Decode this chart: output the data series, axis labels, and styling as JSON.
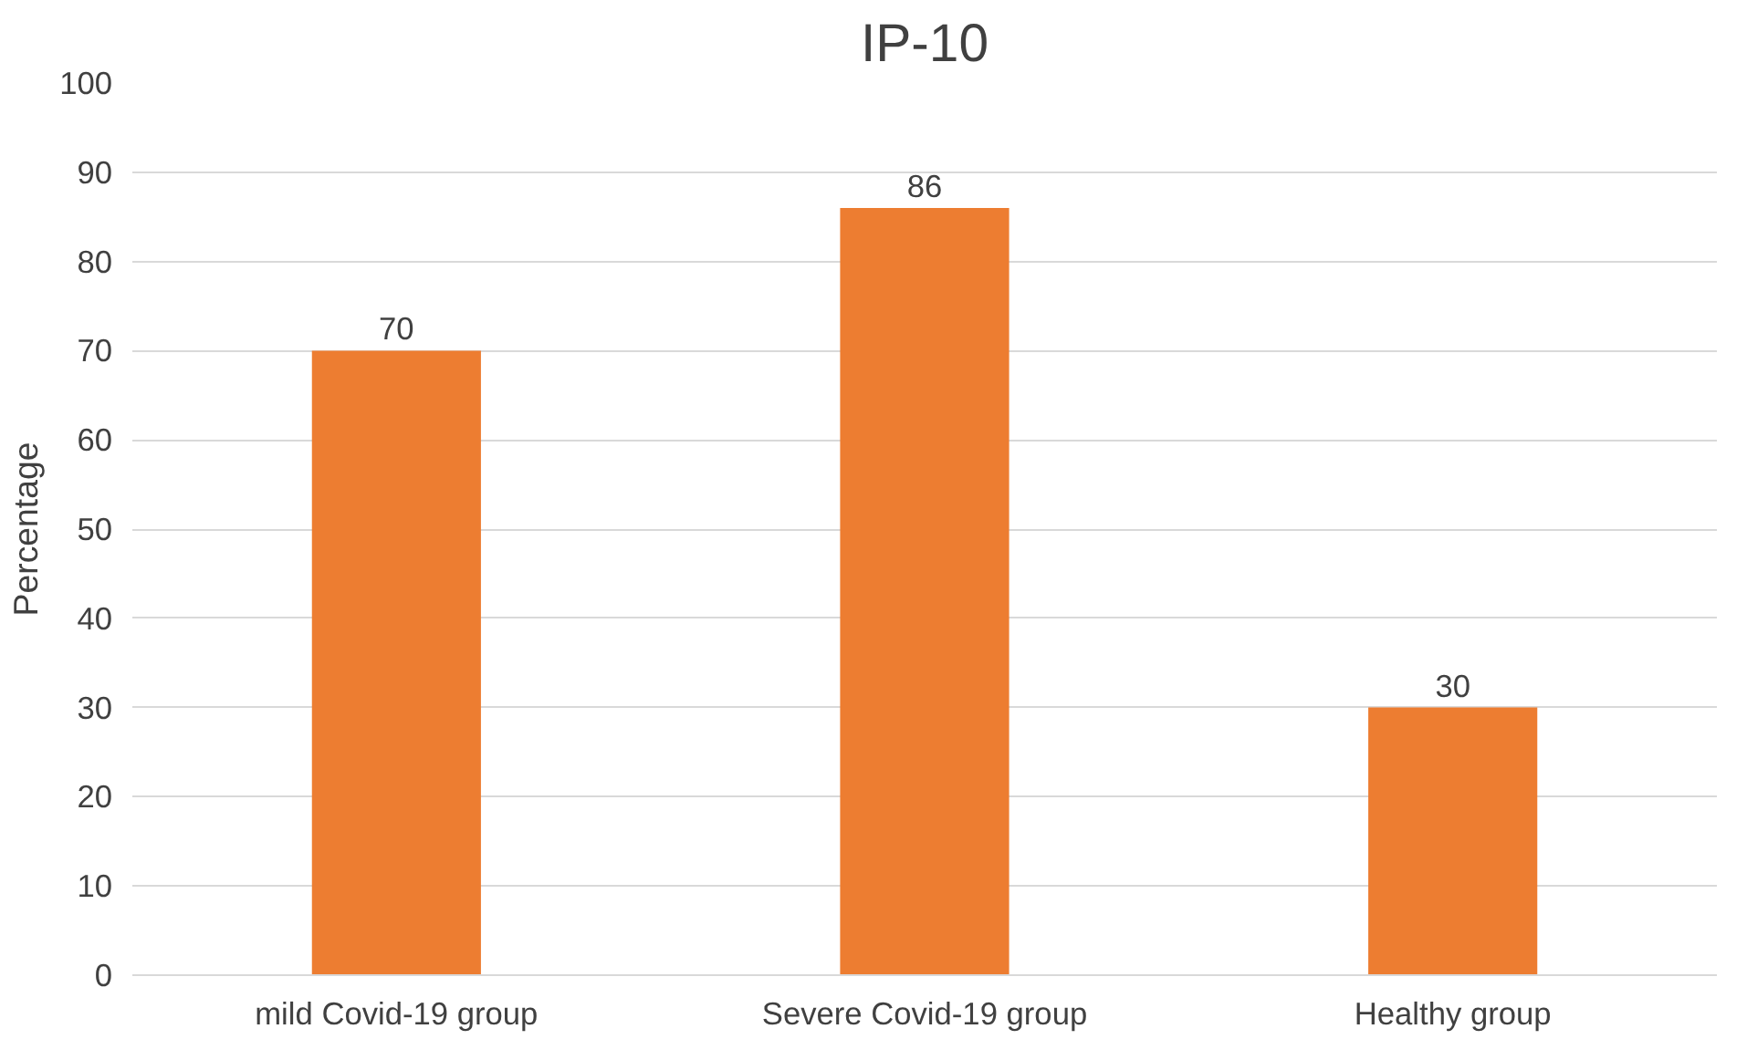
{
  "chart_data": {
    "type": "bar",
    "title": "IP-10",
    "ylabel": "Percentage",
    "categories": [
      "mild Covid-19 group",
      "Severe Covid-19 group",
      "Healthy group"
    ],
    "values": [
      70,
      86,
      30
    ],
    "color": "#ed7d31",
    "ylim": [
      0,
      100
    ],
    "yticks": [
      0,
      10,
      20,
      30,
      40,
      50,
      60,
      70,
      80,
      90,
      100
    ],
    "grid": "y",
    "data_labels": true
  }
}
